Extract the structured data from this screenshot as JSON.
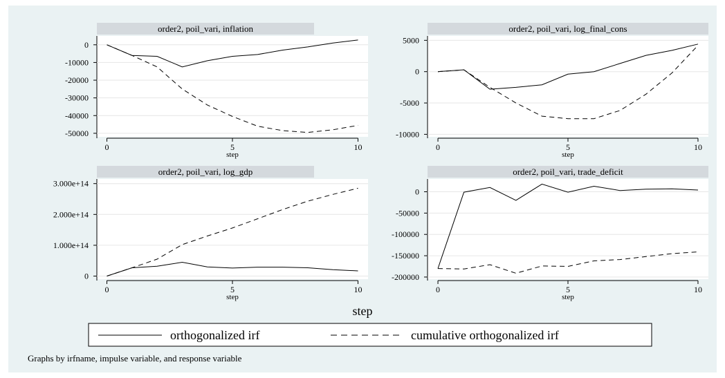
{
  "figure": {
    "background": "#eaf2f3",
    "plot_background": "#ffffff",
    "header_background": "#d4d9dd",
    "overall_xlabel": "step",
    "note": "Graphs by irfname, impulse variable, and response variable",
    "legend": [
      {
        "label": "orthogonalized irf",
        "style": "solid"
      },
      {
        "label": "cumulative orthogonalized irf",
        "style": "dashed"
      }
    ]
  },
  "chart_data": [
    {
      "type": "line",
      "title": "order2, poil_vari, inflation",
      "xlabel": "step",
      "x": [
        0,
        1,
        2,
        3,
        4,
        5,
        6,
        7,
        8,
        9,
        10
      ],
      "xticks": [
        0,
        5,
        10
      ],
      "xlim": [
        -0.4,
        10.4
      ],
      "ylim": [
        -52000,
        5000
      ],
      "yticks": [
        0,
        -10000,
        -20000,
        -30000,
        -40000,
        -50000
      ],
      "ytick_labels": [
        "0",
        "-10000",
        "-20000",
        "-30000",
        "-40000",
        "-50000"
      ],
      "series": [
        {
          "name": "orthogonalized irf",
          "style": "solid",
          "values": [
            0,
            -6000,
            -6500,
            -12500,
            -9000,
            -6500,
            -5500,
            -3000,
            -1200,
            1000,
            2700
          ]
        },
        {
          "name": "cumulative orthogonalized irf",
          "style": "dashed",
          "values": [
            0,
            -6000,
            -12500,
            -25000,
            -34000,
            -40500,
            -46000,
            -48500,
            -49500,
            -48000,
            -45500
          ]
        }
      ]
    },
    {
      "type": "line",
      "title": "order2, poil_vari, log_final_cons",
      "xlabel": "step",
      "x": [
        0,
        1,
        2,
        3,
        4,
        5,
        6,
        7,
        8,
        9,
        10
      ],
      "xticks": [
        0,
        5,
        10
      ],
      "xlim": [
        -0.4,
        10.4
      ],
      "ylim": [
        -10400,
        5700
      ],
      "yticks": [
        5000,
        0,
        -5000,
        -10000
      ],
      "ytick_labels": [
        "5000",
        "0",
        "-5000",
        "-10000"
      ],
      "series": [
        {
          "name": "orthogonalized irf",
          "style": "solid",
          "values": [
            0,
            300,
            -2800,
            -2500,
            -2100,
            -400,
            0,
            1300,
            2600,
            3400,
            4400
          ]
        },
        {
          "name": "cumulative orthogonalized irf",
          "style": "dashed",
          "values": [
            0,
            300,
            -2500,
            -5000,
            -7100,
            -7500,
            -7500,
            -6200,
            -3600,
            -200,
            4200
          ]
        }
      ]
    },
    {
      "type": "line",
      "title": "order2, poil_vari, log_gdp",
      "xlabel": "step",
      "x": [
        0,
        1,
        2,
        3,
        4,
        5,
        6,
        7,
        8,
        9,
        10
      ],
      "xticks": [
        0,
        5,
        10
      ],
      "xlim": [
        -0.4,
        10.4
      ],
      "ylim": [
        -10000000000000,
        315000000000000
      ],
      "yticks": [
        0,
        100000000000000,
        200000000000000,
        300000000000000
      ],
      "ytick_labels": [
        "0",
        "1.000e+14",
        "2.000e+14",
        "3.000e+14"
      ],
      "series": [
        {
          "name": "orthogonalized irf",
          "style": "solid",
          "values": [
            0,
            27000000000000,
            32000000000000,
            45000000000000,
            30000000000000,
            26000000000000,
            29000000000000,
            29000000000000,
            27000000000000,
            21000000000000,
            17000000000000
          ]
        },
        {
          "name": "cumulative orthogonalized irf",
          "style": "dashed",
          "values": [
            0,
            27000000000000,
            55000000000000,
            102000000000000,
            130000000000000,
            156000000000000,
            186000000000000,
            216000000000000,
            243000000000000,
            265000000000000,
            285000000000000
          ]
        }
      ]
    },
    {
      "type": "line",
      "title": "order2, poil_vari, trade_deficit",
      "xlabel": "step",
      "x": [
        0,
        1,
        2,
        3,
        4,
        5,
        6,
        7,
        8,
        9,
        10
      ],
      "xticks": [
        0,
        5,
        10
      ],
      "xlim": [
        -0.4,
        10.4
      ],
      "ylim": [
        -205000,
        30000
      ],
      "yticks": [
        0,
        -50000,
        -100000,
        -150000,
        -200000
      ],
      "ytick_labels": [
        "0",
        "-50000",
        "-100000",
        "-150000",
        "-200000"
      ],
      "series": [
        {
          "name": "orthogonalized irf",
          "style": "solid",
          "values": [
            -180000,
            -1000,
            10000,
            -20000,
            18000,
            -1000,
            13000,
            3000,
            6000,
            7000,
            4000
          ]
        },
        {
          "name": "cumulative orthogonalized irf",
          "style": "dashed",
          "values": [
            -180000,
            -181000,
            -171000,
            -191000,
            -174000,
            -175000,
            -162000,
            -159000,
            -152000,
            -145000,
            -141000
          ]
        }
      ]
    }
  ]
}
